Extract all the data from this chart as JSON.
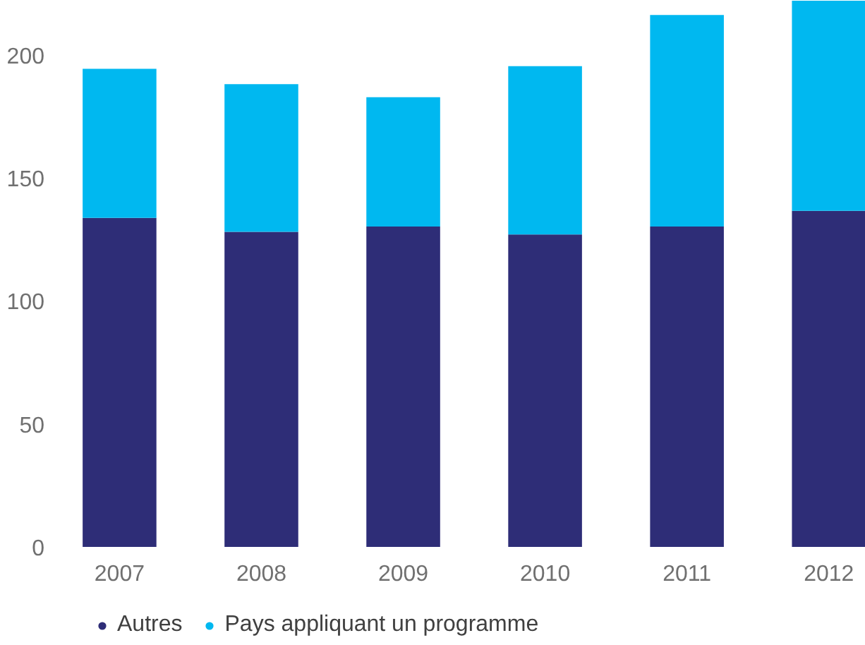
{
  "chart_data": {
    "type": "bar",
    "stacked": true,
    "categories": [
      "2007",
      "2008",
      "2009",
      "2010",
      "2011",
      "2012"
    ],
    "series": [
      {
        "name": "Autres",
        "color": "#2e2d77",
        "values": [
          133.7,
          128.1,
          130.2,
          127.0,
          130.2,
          136.6
        ]
      },
      {
        "name": "Pays appliquant un programme",
        "color": "#00b8f0",
        "values": [
          60.6,
          60.0,
          52.6,
          68.4,
          86.0,
          85.4
        ]
      }
    ],
    "ylim": [
      0,
      222
    ],
    "yticks": [
      0,
      50,
      100,
      150,
      200
    ],
    "grid": false,
    "legend": "bottom"
  }
}
